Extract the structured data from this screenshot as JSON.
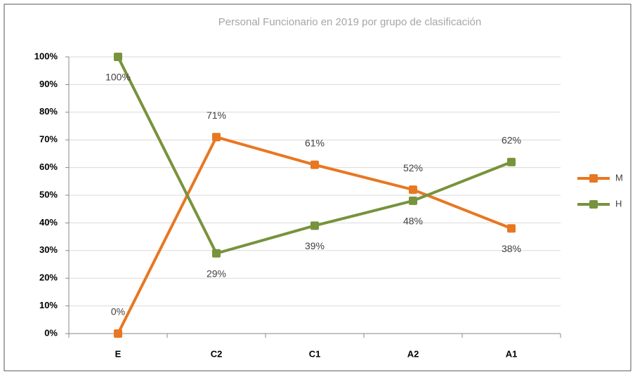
{
  "chart_data": {
    "type": "line",
    "title": "Personal Funcionario en 2019  por grupo de clasificación",
    "categories": [
      "E",
      "C2",
      "C1",
      "A2",
      "A1"
    ],
    "series": [
      {
        "name": "M",
        "color": "#e87722",
        "values": [
          0,
          71,
          61,
          52,
          38
        ],
        "value_labels": [
          "0%",
          "71%",
          "61%",
          "52%",
          "38%"
        ]
      },
      {
        "name": "H",
        "color": "#77933c",
        "values": [
          100,
          29,
          39,
          48,
          62
        ],
        "value_labels": [
          "100%",
          "29%",
          "39%",
          "48%",
          "62%"
        ]
      }
    ],
    "ylim": [
      0,
      100
    ],
    "yticks": [
      {
        "value": 0,
        "label": "0%"
      },
      {
        "value": 10,
        "label": "10%"
      },
      {
        "value": 20,
        "label": "20%"
      },
      {
        "value": 30,
        "label": "30%"
      },
      {
        "value": 40,
        "label": "40%"
      },
      {
        "value": 50,
        "label": "50%"
      },
      {
        "value": 60,
        "label": "60%"
      },
      {
        "value": 70,
        "label": "70%"
      },
      {
        "value": 80,
        "label": "80%"
      },
      {
        "value": 90,
        "label": "90%"
      },
      {
        "value": 100,
        "label": "100%"
      }
    ],
    "grid": true,
    "legend": "right"
  }
}
